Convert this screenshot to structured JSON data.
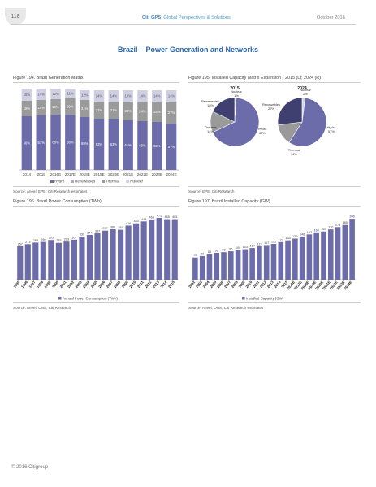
{
  "header": {
    "page_number": "118",
    "brand_bold": "Citi GPS",
    "brand_rest": ": Global Perspectives & Solutions",
    "date": "October 2016"
  },
  "title": "Brazil – Power Generation and Networks",
  "fig194": {
    "title": "Figure 194. Brazil Generation Matrix",
    "source": "Source: Aneel, EPE, Citi Research estimates"
  },
  "fig195": {
    "title": "Figure 195. Installed Capacity Matrix Expansion - 2015 (L); 2024 (R)",
    "source": "Source: EPE, Citi Research"
  },
  "fig196": {
    "title": "Figure 196. Brazil Power Consumption (TWh)",
    "source": "Source: Aneel, ONS, Citi Research"
  },
  "fig197": {
    "title": "Figure 197. Brazil Installed Capacity (GW)",
    "source": "Source: Aneel, ONS, Citi Research estimates"
  },
  "footer": "© 2016 Citigroup",
  "chart_data": [
    {
      "type": "bar",
      "stacked": true,
      "categories": [
        "2014",
        "2015",
        "2016E",
        "2017E",
        "2018E",
        "2019E",
        "2020E",
        "2021E",
        "2022E",
        "2023E",
        "2024E"
      ],
      "series": [
        {
          "name": "Hydro",
          "values": [
            66,
            67,
            68,
            68,
            65,
            63,
            63,
            61,
            60,
            59,
            57
          ],
          "color": "#6c6caa"
        },
        {
          "name": "Renewables",
          "values": [
            0,
            0,
            0,
            0,
            0,
            0,
            0,
            0,
            0,
            0,
            0
          ],
          "color": "#a9a9c9"
        },
        {
          "name": "Thermal",
          "values": [
            19,
            19,
            19,
            20,
            21,
            21,
            21,
            23,
            24,
            25,
            27
          ],
          "color": "#9a9a9a"
        },
        {
          "name": "Nuclear",
          "values": [
            15,
            14,
            13,
            12,
            12,
            14,
            14,
            14,
            14,
            14,
            14
          ],
          "color": "#cfcfe3"
        }
      ],
      "segment_labels": {
        "Hydro": [
          "66%",
          "67%",
          "68%",
          "68%",
          "65%",
          "63%",
          "63%",
          "61%",
          "60%",
          "59%",
          "57%"
        ],
        "Thermal": [
          "19%",
          "19%",
          "19%",
          "20%",
          "21%",
          "21%",
          "21%",
          "23%",
          "24%",
          "25%",
          "27%"
        ],
        "Nuclear": [
          "15%",
          "14%",
          "13%",
          "12%",
          "12%",
          "14%",
          "14%",
          "14%",
          "14%",
          "14%",
          "14%"
        ]
      },
      "legend": [
        "Hydro",
        "Renewables",
        "Thermal",
        "Nuclear"
      ],
      "ylim": [
        0,
        100
      ]
    },
    {
      "type": "pie",
      "charts": [
        {
          "title": "2015",
          "slices": [
            {
              "label": "Hydro",
              "value": 67,
              "text": "Hydro\n67%",
              "color": "#6c6caa"
            },
            {
              "label": "Thermal",
              "value": 14,
              "text": "Thermal\n14%",
              "color": "#9a9a9a"
            },
            {
              "label": "Renewables",
              "value": 18,
              "text": "Renewables\n18%",
              "color": "#404070"
            },
            {
              "label": "Nuclear",
              "value": 1,
              "text": "Nuclear\n1%",
              "color": "#cfcfe3"
            }
          ]
        },
        {
          "title": "2024",
          "slices": [
            {
              "label": "Hydro",
              "value": 57,
              "text": "Hydro\n57%",
              "color": "#6c6caa"
            },
            {
              "label": "Thermal",
              "value": 14,
              "text": "Thermal\n14%",
              "color": "#9a9a9a"
            },
            {
              "label": "Renewables",
              "value": 27,
              "text": "Renewables\n27%",
              "color": "#404070"
            },
            {
              "label": "Nuclear",
              "value": 2,
              "text": "Nuclear\n2%",
              "color": "#cfcfe3"
            }
          ]
        }
      ]
    },
    {
      "type": "bar",
      "categories": [
        "1995",
        "1996",
        "1997",
        "1998",
        "1999",
        "2000",
        "2001",
        "2002",
        "2003",
        "2004",
        "2005",
        "2006",
        "2007",
        "2008",
        "2009",
        "2010",
        "2011",
        "2012",
        "2013",
        "2014",
        "2015"
      ],
      "series": [
        {
          "name": "Annual Power Consumption (TWh)",
          "values": [
            257,
            273,
            285,
            290,
            305,
            283,
            293,
            307,
            330,
            344,
            357,
            377,
            388,
            384,
            416,
            433,
            448,
            463,
            475,
            465,
            465
          ],
          "color": "#6c6caa"
        }
      ],
      "ylim": [
        0,
        500
      ]
    },
    {
      "type": "bar",
      "categories": [
        "2002",
        "2003",
        "2004",
        "2005",
        "2006",
        "2007",
        "2008",
        "2009",
        "2010",
        "2011",
        "2012",
        "2013",
        "2014",
        "2015",
        "2016E",
        "2017E",
        "2018E",
        "2019E",
        "2020E",
        "2021E",
        "2022E",
        "2023E",
        "2024E"
      ],
      "series": [
        {
          "name": "Installed Capacity (GW)",
          "values": [
            75,
            80,
            86,
            91,
            93,
            96,
            100,
            103,
            107,
            113,
            117,
            121,
            127,
            133,
            139,
            146,
            153,
            160,
            163,
            170,
            178,
            185,
            206
          ],
          "color": "#6c6caa"
        }
      ],
      "ylim": [
        0,
        220
      ]
    }
  ]
}
